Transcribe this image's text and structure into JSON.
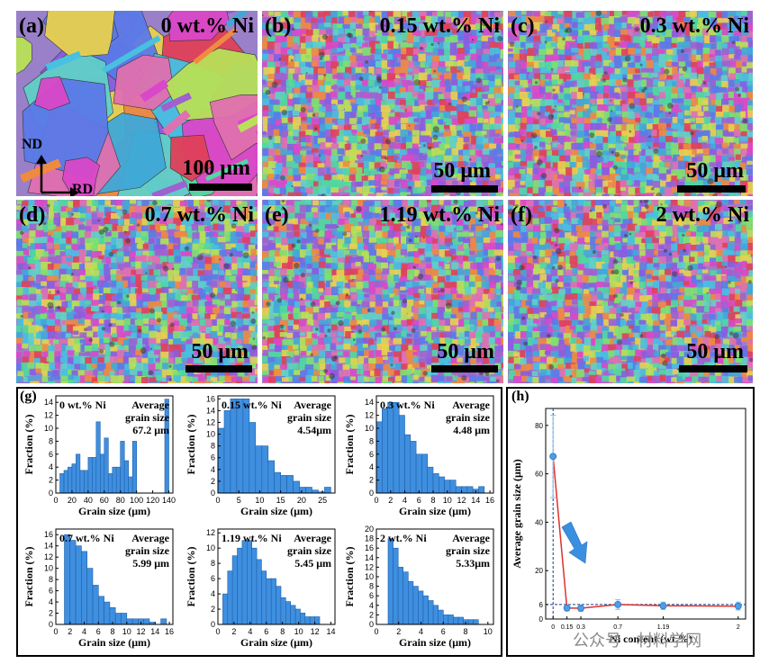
{
  "maps": [
    {
      "label": "(a)",
      "title": "0 wt.% Ni",
      "scale": "100 μm",
      "axes": {
        "nd": "ND",
        "rd": "RD"
      }
    },
    {
      "label": "(b)",
      "title": "0.15 wt.% Ni",
      "scale": "50 μm"
    },
    {
      "label": "(c)",
      "title": "0.3 wt.% Ni",
      "scale": "50 μm"
    },
    {
      "label": "(d)",
      "title": "0.7 wt.% Ni",
      "scale": "50 μm"
    },
    {
      "label": "(e)",
      "title": "1.19 wt.% Ni",
      "scale": "50 μm"
    },
    {
      "label": "(f)",
      "title": "2 wt.% Ni",
      "scale": "50 μm"
    }
  ],
  "colors": {
    "bar_fill": "#3f8fe0",
    "bar_stroke": "#1f5fa8",
    "line": "#e0302a",
    "marker": "#4aa0e8",
    "errorbar": "#8fc4f0",
    "guide": "#1a3a8a",
    "arrow": "#3a8fe0"
  },
  "g_label": "(g)",
  "h_label": "(h)",
  "chart_data": [
    {
      "type": "bar",
      "title": "0 wt.% Ni",
      "annotation": [
        "Average",
        "grain size",
        "67.2 μm"
      ],
      "xlabel": "Grain size (μm)",
      "ylabel": "Fraction (%)",
      "xlim": [
        0,
        145
      ],
      "ylim": [
        0,
        15
      ],
      "xticks": [
        0,
        20,
        40,
        60,
        80,
        100,
        120,
        140
      ],
      "yticks": [
        0,
        2,
        4,
        6,
        8,
        10,
        12,
        14
      ],
      "bin_width": 5,
      "x": [
        10,
        15,
        20,
        25,
        30,
        35,
        40,
        45,
        50,
        55,
        60,
        65,
        70,
        75,
        80,
        85,
        90,
        95,
        100,
        140
      ],
      "values": [
        3,
        3.5,
        4,
        4.5,
        6,
        3.5,
        3.5,
        5.5,
        5.5,
        11,
        6,
        8.5,
        3,
        4,
        4,
        8,
        5,
        2.5,
        8,
        14.5
      ]
    },
    {
      "type": "bar",
      "title": "0.15 wt.% Ni",
      "annotation": [
        "Average",
        "grain size",
        "4.54μm"
      ],
      "xlabel": "Grain size (μm)",
      "ylabel": "Fraction (%)",
      "xlim": [
        0,
        28
      ],
      "ylim": [
        0,
        16.5
      ],
      "xticks": [
        0,
        5,
        10,
        15,
        20,
        25
      ],
      "yticks": [
        0,
        2,
        4,
        6,
        8,
        10,
        12,
        14,
        16
      ],
      "bin_width": 1.5,
      "x": [
        1.5,
        3,
        4.5,
        6,
        7.5,
        9,
        10.5,
        12,
        13.5,
        15,
        16.5,
        18,
        19.5,
        21,
        22.5,
        24,
        25.5,
        27
      ],
      "values": [
        11,
        14,
        16,
        16,
        16,
        12,
        8,
        8,
        5.5,
        3.5,
        3,
        3,
        2,
        1,
        1,
        0.5,
        0.2,
        1
      ]
    },
    {
      "type": "bar",
      "title": "0.3 wt.% Ni",
      "annotation": [
        "Average",
        "grain size",
        "4.48 μm"
      ],
      "xlabel": "Grain size (μm)",
      "ylabel": "Fraction (%)",
      "xlim": [
        0,
        16.5
      ],
      "ylim": [
        0,
        15
      ],
      "xticks": [
        0,
        2,
        4,
        6,
        8,
        10,
        12,
        14,
        16
      ],
      "yticks": [
        0,
        2,
        4,
        6,
        8,
        10,
        12,
        14
      ],
      "bin_width": 0.8,
      "x": [
        0.8,
        1.6,
        2.4,
        3.2,
        4.0,
        4.8,
        5.6,
        6.4,
        7.2,
        8.0,
        8.8,
        9.6,
        10.4,
        11.2,
        12.0,
        12.8,
        13.6,
        14.4,
        15.2
      ],
      "values": [
        11,
        13,
        14,
        14,
        12,
        9,
        8,
        6,
        6,
        4,
        3,
        2.5,
        2,
        2,
        1,
        1,
        1,
        0.6,
        1
      ]
    },
    {
      "type": "bar",
      "title": "0.7 wt.% Ni",
      "annotation": [
        "Average",
        "grain size",
        "5.99 μm"
      ],
      "xlabel": "Grain size (μm)",
      "ylabel": "Fraction (%)",
      "xlim": [
        0,
        16.5
      ],
      "ylim": [
        0,
        17
      ],
      "xticks": [
        0,
        2,
        4,
        6,
        8,
        10,
        12,
        14,
        16
      ],
      "yticks": [
        0,
        2,
        4,
        6,
        8,
        10,
        12,
        14,
        16
      ],
      "bin_width": 0.8,
      "x": [
        2.0,
        2.8,
        3.6,
        4.4,
        5.2,
        6.0,
        6.8,
        7.6,
        8.4,
        9.2,
        10.0,
        10.8,
        11.6,
        12.4,
        13.2,
        14.0,
        15.6
      ],
      "values": [
        16,
        15,
        14,
        13,
        10,
        7,
        5,
        4,
        3,
        2,
        2,
        1,
        1,
        1,
        1,
        0.4,
        1
      ]
    },
    {
      "type": "bar",
      "title": "1.19 wt.% Ni",
      "annotation": [
        "Average",
        "grain size",
        "5.45 μm"
      ],
      "xlabel": "Grain size (μm)",
      "ylabel": "Fraction (%)",
      "xlim": [
        0,
        14.5
      ],
      "ylim": [
        0,
        12.5
      ],
      "xticks": [
        0,
        2,
        4,
        6,
        8,
        10,
        12,
        14
      ],
      "yticks": [
        0,
        2,
        4,
        6,
        8,
        10,
        12
      ],
      "bin_width": 0.6,
      "x": [
        1.2,
        1.8,
        2.4,
        3.0,
        3.6,
        4.2,
        4.8,
        5.4,
        6.0,
        6.6,
        7.2,
        7.8,
        8.4,
        9.0,
        9.6,
        10.2,
        10.8,
        11.4,
        12.0,
        12.6
      ],
      "values": [
        4,
        7,
        9,
        10,
        11,
        11,
        10,
        8.5,
        7,
        6,
        6,
        5,
        3.5,
        3,
        2.5,
        2,
        1.5,
        1,
        1,
        1
      ]
    },
    {
      "type": "bar",
      "title": "2 wt.% Ni",
      "annotation": [
        "Average",
        "grain size",
        "5.33μm"
      ],
      "xlabel": "Grain size (μm)",
      "ylabel": "Fraction (%)",
      "xlim": [
        0,
        10.5
      ],
      "ylim": [
        0,
        20
      ],
      "xticks": [
        0,
        2,
        4,
        6,
        8,
        10
      ],
      "yticks": [
        0,
        2,
        4,
        6,
        8,
        10,
        12,
        14,
        16,
        18,
        20
      ],
      "bin_width": 0.45,
      "x": [
        1.5,
        1.95,
        2.4,
        2.85,
        3.3,
        3.75,
        4.2,
        4.65,
        5.1,
        5.55,
        6.0,
        6.45,
        6.9,
        7.35,
        7.8,
        8.25,
        8.7,
        9.15
      ],
      "values": [
        18,
        16,
        12,
        11,
        9,
        8,
        7,
        6,
        5,
        4,
        3,
        2,
        2,
        1.5,
        1.5,
        1,
        1,
        1
      ]
    },
    {
      "type": "line",
      "xlabel": "Ni content (wt.%)",
      "ylabel": "Average grain size (μm)",
      "xlim": [
        -0.08,
        2.08
      ],
      "ylim": [
        0,
        87
      ],
      "xticks": [
        0,
        0.15,
        0.3,
        0.7,
        1.19,
        2
      ],
      "xticklabels": [
        "0",
        "0.15",
        "0.3",
        "0.7",
        "1.19",
        "2"
      ],
      "yticks": [
        0,
        6,
        20,
        40,
        60,
        80
      ],
      "x": [
        0,
        0.15,
        0.3,
        0.7,
        1.19,
        2
      ],
      "y": [
        67.2,
        4.54,
        4.48,
        5.99,
        5.45,
        5.33
      ],
      "yerr": [
        17,
        1.2,
        1.2,
        2.0,
        1.5,
        1.6
      ],
      "guide_y": 6,
      "guide_x": 0
    }
  ],
  "watermark": "公众号 · 材料学网"
}
